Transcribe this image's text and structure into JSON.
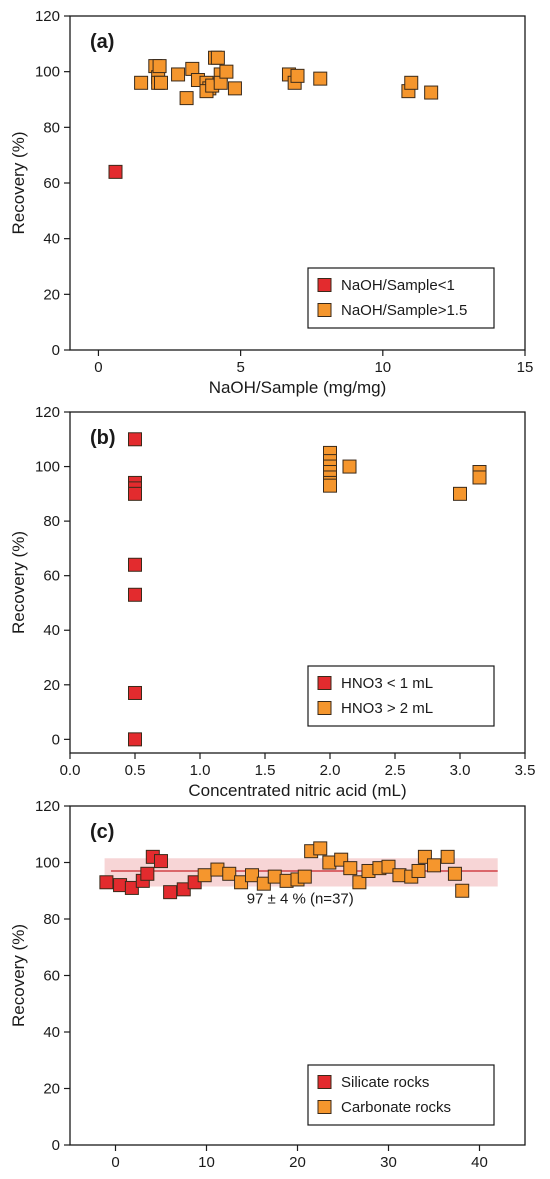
{
  "colors": {
    "red": "#e32b2e",
    "orange": "#f5962d",
    "marker_edge": "#3a2a1a",
    "band": "#f4c7c8",
    "mean_line": "#c9252b",
    "axis": "#1a1a1a"
  },
  "chart_data": [
    {
      "type": "scatter",
      "panel_label": "(a)",
      "xlabel": "NaOH/Sample (mg/mg)",
      "ylabel": "Recovery (%)",
      "xlim": [
        -1,
        15
      ],
      "ylim": [
        0,
        120
      ],
      "xticks": [
        0,
        5,
        10,
        15
      ],
      "xtick_labels": [
        "0",
        "5",
        "10",
        "15"
      ],
      "yticks": [
        0,
        20,
        40,
        60,
        80,
        100,
        120
      ],
      "ytick_labels": [
        "0",
        "20",
        "40",
        "60",
        "80",
        "100",
        "120"
      ],
      "legend_position": "bottom-right",
      "series": [
        {
          "name": "NaOH/Sample<1",
          "color_key": "red",
          "points": [
            [
              0.6,
              64
            ]
          ]
        },
        {
          "name": "NaOH/Sample>1.5",
          "color_key": "orange",
          "points": [
            [
              1.5,
              96
            ],
            [
              2.0,
              102
            ],
            [
              2.1,
              98
            ],
            [
              2.1,
              96
            ],
            [
              2.15,
              102
            ],
            [
              2.2,
              96
            ],
            [
              2.8,
              99
            ],
            [
              3.1,
              90.5
            ],
            [
              3.3,
              101
            ],
            [
              3.5,
              97
            ],
            [
              3.8,
              96
            ],
            [
              3.9,
              94
            ],
            [
              3.8,
              93
            ],
            [
              4.0,
              95
            ],
            [
              4.1,
              105
            ],
            [
              4.2,
              105
            ],
            [
              4.3,
              99
            ],
            [
              4.3,
              96
            ],
            [
              4.5,
              100
            ],
            [
              4.8,
              94
            ],
            [
              6.7,
              99
            ],
            [
              6.9,
              96
            ],
            [
              7.0,
              98.5
            ],
            [
              7.8,
              97.5
            ],
            [
              10.9,
              93
            ],
            [
              11.0,
              96
            ],
            [
              11.7,
              92.5
            ]
          ]
        }
      ]
    },
    {
      "type": "scatter",
      "panel_label": "(b)",
      "xlabel": "Concentrated nitric acid (mL)",
      "ylabel": "Recovery (%)",
      "xlim": [
        0,
        3.5
      ],
      "ylim": [
        -5,
        120
      ],
      "xticks": [
        0,
        0.5,
        1.0,
        1.5,
        2.0,
        2.5,
        3.0,
        3.5
      ],
      "xtick_labels": [
        "0.0",
        "0.5",
        "1.0",
        "1.5",
        "2.0",
        "2.5",
        "3.0",
        "3.5"
      ],
      "yticks": [
        0,
        20,
        40,
        60,
        80,
        100,
        120
      ],
      "ytick_labels": [
        "0",
        "20",
        "40",
        "60",
        "80",
        "100",
        "120"
      ],
      "legend_position": "bottom-right",
      "series": [
        {
          "name": "HNO3 < 1 mL",
          "color_key": "red",
          "points": [
            [
              0.5,
              110
            ],
            [
              0.5,
              94
            ],
            [
              0.5,
              92
            ],
            [
              0.5,
              90
            ],
            [
              0.5,
              64
            ],
            [
              0.5,
              53
            ],
            [
              0.5,
              17
            ],
            [
              0.5,
              0
            ]
          ]
        },
        {
          "name": "HNO3 > 2 mL",
          "color_key": "orange",
          "points": [
            [
              2.0,
              105
            ],
            [
              2.0,
              102
            ],
            [
              2.0,
              100
            ],
            [
              2.0,
              98
            ],
            [
              2.0,
              96
            ],
            [
              2.0,
              94
            ],
            [
              2.0,
              93
            ],
            [
              2.15,
              100
            ],
            [
              3.0,
              90
            ],
            [
              3.15,
              98
            ],
            [
              3.15,
              96
            ]
          ]
        }
      ]
    },
    {
      "type": "scatter",
      "panel_label": "(c)",
      "xlabel": "",
      "ylabel": "Recovery (%)",
      "xlim": [
        -5,
        45
      ],
      "ylim": [
        0,
        120
      ],
      "xticks": [
        0,
        10,
        20,
        30,
        40
      ],
      "xtick_labels": [
        "0",
        "10",
        "20",
        "30",
        "40"
      ],
      "yticks": [
        0,
        20,
        40,
        60,
        80,
        100,
        120
      ],
      "ytick_labels": [
        "0",
        "20",
        "40",
        "60",
        "80",
        "100",
        "120"
      ],
      "legend_position": "bottom-right",
      "mean_line": {
        "y": 97,
        "x_from": -0.5,
        "x_to": 42
      },
      "band": {
        "y_low": 91.5,
        "y_high": 101.5,
        "x_from": -1.2,
        "x_to": 42
      },
      "annotation": "97 ± 4 % (n=37)",
      "series": [
        {
          "name": "Silicate rocks",
          "color_key": "red",
          "points": [
            [
              -1,
              93
            ],
            [
              0.5,
              92
            ],
            [
              1.8,
              91
            ],
            [
              3,
              93.5
            ],
            [
              3.5,
              96
            ],
            [
              4.1,
              102
            ],
            [
              5,
              100.5
            ],
            [
              6,
              89.5
            ],
            [
              7.5,
              90.5
            ],
            [
              8.7,
              93
            ]
          ]
        },
        {
          "name": "Carbonate rocks",
          "color_key": "orange",
          "points": [
            [
              9.8,
              95.5
            ],
            [
              11.2,
              97.5
            ],
            [
              12.5,
              96
            ],
            [
              13.8,
              93
            ],
            [
              15,
              95.5
            ],
            [
              16.3,
              92.5
            ],
            [
              17.5,
              95
            ],
            [
              18.8,
              93.5
            ],
            [
              20,
              94
            ],
            [
              20.8,
              95
            ],
            [
              21.5,
              104
            ],
            [
              22.5,
              105
            ],
            [
              23.5,
              100
            ],
            [
              24.8,
              101
            ],
            [
              25.8,
              98
            ],
            [
              26.8,
              93
            ],
            [
              27.8,
              97
            ],
            [
              29,
              98
            ],
            [
              30,
              98.5
            ],
            [
              31.2,
              95.5
            ],
            [
              32.5,
              95
            ],
            [
              33.3,
              97
            ],
            [
              34,
              102
            ],
            [
              35,
              99
            ],
            [
              36.5,
              102
            ],
            [
              37.3,
              96
            ],
            [
              38.1,
              90
            ]
          ]
        }
      ]
    }
  ]
}
